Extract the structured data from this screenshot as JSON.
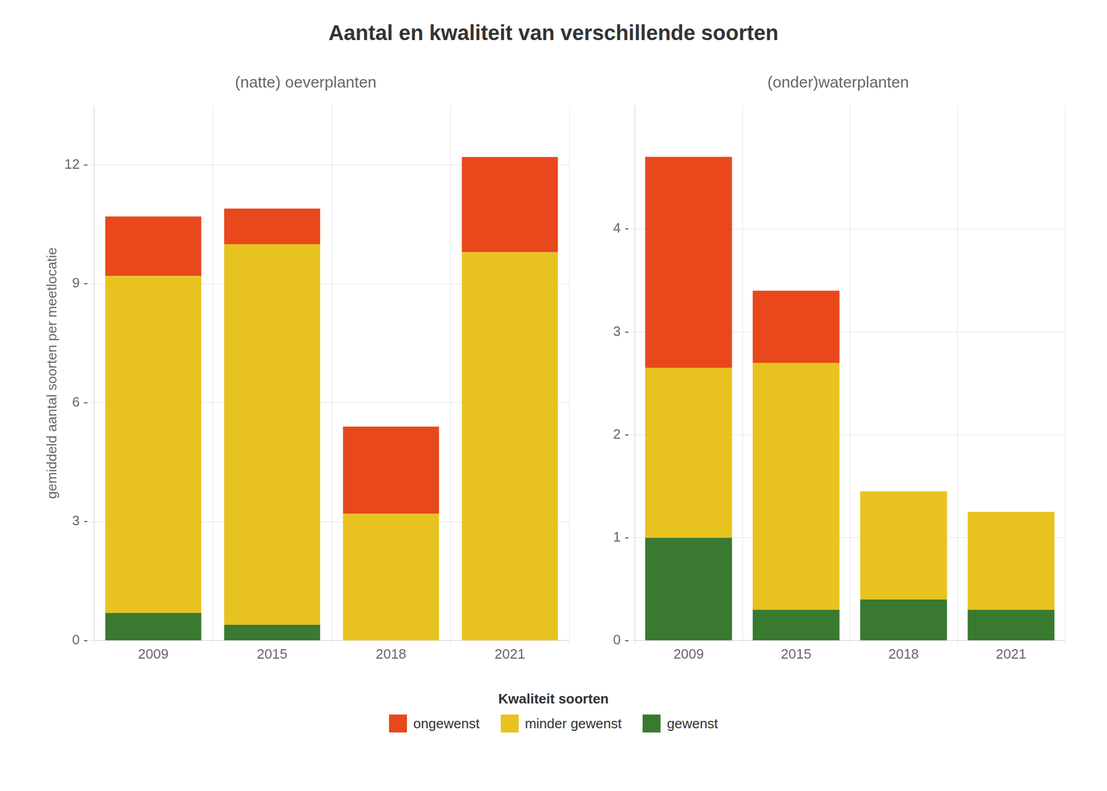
{
  "title": "Aantal en kwaliteit van verschillende soorten",
  "legend_title": "Kwaliteit soorten",
  "chart_data": [
    {
      "type": "bar",
      "subtitle": "(natte) oeverplanten",
      "ylabel": "gemiddeld aantal soorten per meetlocatie",
      "categories": [
        "2009",
        "2015",
        "2018",
        "2021"
      ],
      "series": [
        {
          "name": "gewenst",
          "color": "#3A7A30",
          "values": [
            0.7,
            0.4,
            0.0,
            0.0
          ]
        },
        {
          "name": "minder gewenst",
          "color": "#E8C320",
          "values": [
            8.5,
            9.6,
            3.2,
            9.8
          ]
        },
        {
          "name": "ongewenst",
          "color": "#E8481C",
          "values": [
            1.5,
            0.9,
            2.2,
            2.4
          ]
        }
      ],
      "ylim": [
        0,
        13.5
      ],
      "yticks": [
        {
          "value": 0,
          "label": "0 -"
        },
        {
          "value": 3,
          "label": "3 -"
        },
        {
          "value": 6,
          "label": "6 -"
        },
        {
          "value": 9,
          "label": "9 -"
        },
        {
          "value": 12,
          "label": "12 -"
        }
      ],
      "stacked": true,
      "grid": true,
      "legend": "bottom"
    },
    {
      "type": "bar",
      "subtitle": "(onder)waterplanten",
      "categories": [
        "2009",
        "2015",
        "2018",
        "2021"
      ],
      "series": [
        {
          "name": "gewenst",
          "color": "#3A7A30",
          "values": [
            1.0,
            0.3,
            0.4,
            0.3
          ]
        },
        {
          "name": "minder gewenst",
          "color": "#E8C320",
          "values": [
            1.65,
            2.4,
            1.05,
            0.95
          ]
        },
        {
          "name": "ongewenst",
          "color": "#E8481C",
          "values": [
            2.05,
            0.7,
            0.0,
            0.0
          ]
        }
      ],
      "ylim": [
        0,
        5.2
      ],
      "yticks": [
        {
          "value": 0,
          "label": "0 -"
        },
        {
          "value": 1,
          "label": "1 -"
        },
        {
          "value": 2,
          "label": "2 -"
        },
        {
          "value": 3,
          "label": "3 -"
        },
        {
          "value": 4,
          "label": "4 -"
        }
      ],
      "stacked": true,
      "grid": true,
      "legend": "bottom"
    }
  ]
}
